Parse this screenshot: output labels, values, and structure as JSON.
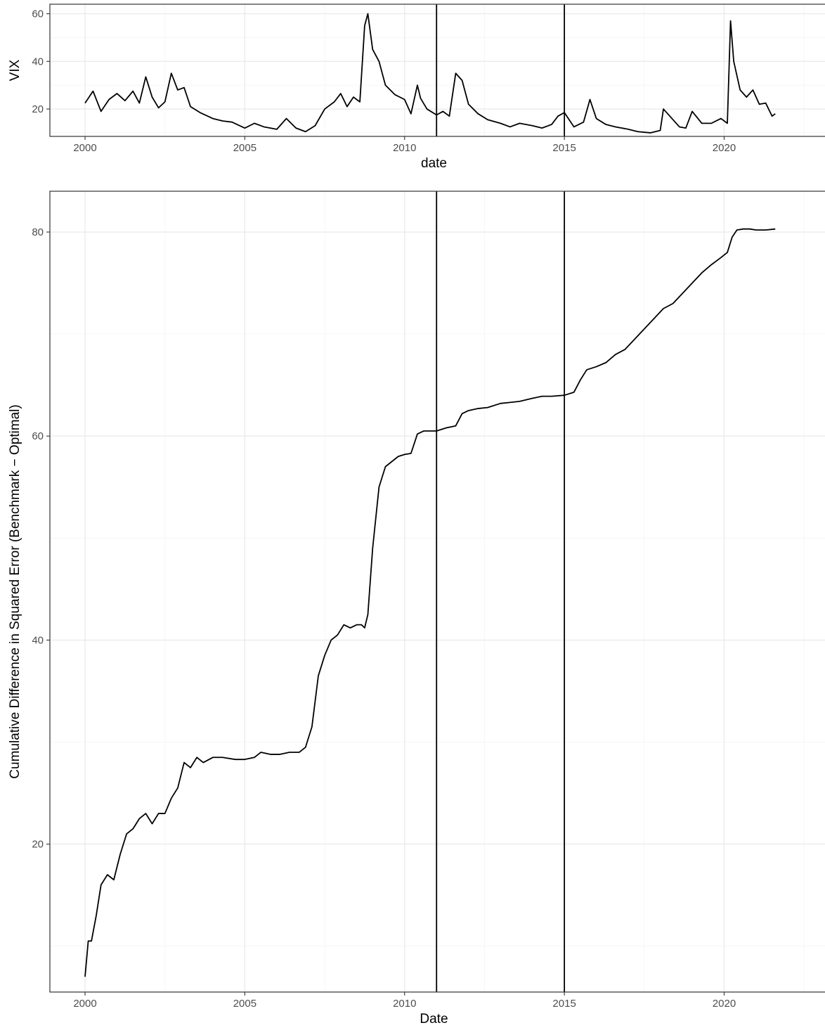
{
  "chart_data": [
    {
      "type": "line",
      "xlabel": "date",
      "ylabel": "VIX",
      "xlim": [
        1998.9,
        2023.2
      ],
      "ylim": [
        8.5,
        64
      ],
      "x_ticks": [
        2000,
        2005,
        2010,
        2015,
        2020
      ],
      "y_ticks": [
        20,
        40,
        60
      ],
      "grid": true,
      "vlines": [
        2011,
        2015
      ],
      "series": [
        {
          "x": [
            2000.0,
            2000.25,
            2000.5,
            2000.75,
            2001.0,
            2001.25,
            2001.5,
            2001.7,
            2001.9,
            2002.1,
            2002.3,
            2002.5,
            2002.7,
            2002.9,
            2003.1,
            2003.3,
            2003.6,
            2004.0,
            2004.3,
            2004.6,
            2005.0,
            2005.3,
            2005.6,
            2006.0,
            2006.3,
            2006.6,
            2006.9,
            2007.2,
            2007.5,
            2007.8,
            2008.0,
            2008.2,
            2008.4,
            2008.6,
            2008.75,
            2008.85,
            2009.0,
            2009.2,
            2009.4,
            2009.7,
            2010.0,
            2010.2,
            2010.4,
            2010.5,
            2010.7,
            2011.0,
            2011.2,
            2011.4,
            2011.6,
            2011.8,
            2012.0,
            2012.3,
            2012.6,
            2013.0,
            2013.3,
            2013.6,
            2014.0,
            2014.3,
            2014.6,
            2014.8,
            2015.0,
            2015.3,
            2015.6,
            2015.8,
            2016.0,
            2016.3,
            2016.6,
            2017.0,
            2017.3,
            2017.7,
            2018.0,
            2018.1,
            2018.3,
            2018.6,
            2018.8,
            2019.0,
            2019.3,
            2019.6,
            2019.9,
            2020.1,
            2020.2,
            2020.3,
            2020.5,
            2020.7,
            2020.9,
            2021.1,
            2021.3,
            2021.5,
            2021.6
          ],
          "y": [
            22.5,
            27.5,
            19,
            24,
            26.5,
            23.5,
            27.5,
            22.5,
            33.5,
            25,
            20.5,
            23,
            35,
            28,
            29,
            21,
            18.5,
            16,
            15,
            14.5,
            12,
            14,
            12.5,
            11.5,
            16,
            12,
            10.5,
            13,
            20,
            23,
            26.5,
            21,
            25,
            23,
            55,
            60,
            45,
            40,
            30,
            26,
            24,
            18,
            30,
            24.5,
            20,
            17.5,
            19,
            17,
            35,
            32,
            22,
            18,
            15.5,
            14,
            12.5,
            14,
            13,
            12,
            13.5,
            17,
            18.5,
            12.5,
            14.5,
            24,
            16,
            13.5,
            12.5,
            11.5,
            10.5,
            10,
            11,
            20,
            17,
            12.5,
            12,
            19,
            14,
            14,
            16,
            14,
            57,
            40,
            28,
            25,
            28,
            22,
            22.5,
            17,
            18
          ]
        }
      ]
    },
    {
      "type": "line",
      "xlabel": "Date",
      "ylabel": "Cumulative Difference in Squared Error (Benchmark − Optimal)",
      "xlim": [
        1998.9,
        2023.2
      ],
      "ylim": [
        5.5,
        84
      ],
      "x_ticks": [
        2000,
        2005,
        2010,
        2015,
        2020
      ],
      "y_ticks": [
        20,
        40,
        60,
        80
      ],
      "grid": true,
      "vlines": [
        2011,
        2015
      ],
      "series": [
        {
          "x": [
            2000.0,
            2000.1,
            2000.2,
            2000.35,
            2000.5,
            2000.7,
            2000.9,
            2001.1,
            2001.3,
            2001.5,
            2001.7,
            2001.9,
            2002.1,
            2002.3,
            2002.5,
            2002.7,
            2002.9,
            2003.1,
            2003.3,
            2003.5,
            2003.7,
            2004.0,
            2004.3,
            2004.7,
            2005.0,
            2005.3,
            2005.5,
            2005.8,
            2006.1,
            2006.4,
            2006.7,
            2006.9,
            2007.1,
            2007.3,
            2007.5,
            2007.7,
            2007.9,
            2008.1,
            2008.3,
            2008.5,
            2008.65,
            2008.75,
            2008.85,
            2009.0,
            2009.2,
            2009.4,
            2009.6,
            2009.8,
            2010.0,
            2010.2,
            2010.4,
            2010.6,
            2011.0,
            2011.3,
            2011.6,
            2011.8,
            2012.0,
            2012.3,
            2012.6,
            2013.0,
            2013.3,
            2013.6,
            2014.0,
            2014.3,
            2014.6,
            2015.0,
            2015.3,
            2015.5,
            2015.7,
            2016.0,
            2016.3,
            2016.6,
            2016.9,
            2017.2,
            2017.5,
            2017.8,
            2018.1,
            2018.4,
            2018.7,
            2019.0,
            2019.3,
            2019.6,
            2019.9,
            2020.1,
            2020.25,
            2020.4,
            2020.6,
            2020.8,
            2021.0,
            2021.3,
            2021.6
          ],
          "y": [
            7,
            10.5,
            10.5,
            13,
            16,
            17,
            16.5,
            19,
            21,
            21.5,
            22.5,
            23,
            22,
            23,
            23,
            24.5,
            25.5,
            28,
            27.5,
            28.5,
            28,
            28.5,
            28.5,
            28.3,
            28.3,
            28.5,
            29,
            28.8,
            28.8,
            29,
            29,
            29.5,
            31.5,
            36.5,
            38.5,
            40,
            40.5,
            41.5,
            41.2,
            41.5,
            41.5,
            41.2,
            42.5,
            49,
            55,
            57,
            57.5,
            58,
            58.2,
            58.3,
            60.2,
            60.5,
            60.5,
            60.8,
            61,
            62.2,
            62.5,
            62.7,
            62.8,
            63.2,
            63.3,
            63.4,
            63.7,
            63.9,
            63.9,
            64,
            64.3,
            65.5,
            66.5,
            66.8,
            67.2,
            68,
            68.5,
            69.5,
            70.5,
            71.5,
            72.5,
            73,
            74,
            75,
            76,
            76.8,
            77.5,
            78,
            79.5,
            80.2,
            80.3,
            80.3,
            80.2,
            80.2,
            80.3
          ]
        }
      ]
    }
  ]
}
